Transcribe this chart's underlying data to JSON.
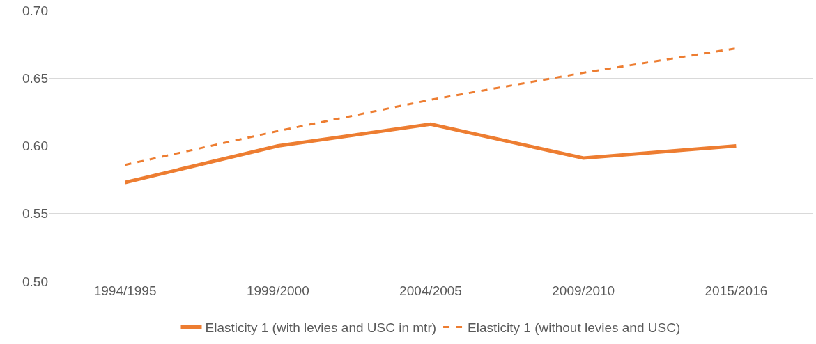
{
  "chart_data": {
    "type": "line",
    "categories": [
      "1994/1995",
      "1999/2000",
      "2004/2005",
      "2009/2010",
      "2015/2016"
    ],
    "series": [
      {
        "name": "Elasticity 1 (with levies and USC in mtr)",
        "color": "#ed7d31",
        "line_style": "solid",
        "values": [
          0.573,
          0.6,
          0.616,
          0.591,
          0.6
        ]
      },
      {
        "name": "Elasticity 1 (without levies and USC)",
        "color": "#ed7d31",
        "line_style": "dashed",
        "values": [
          0.586,
          0.611,
          0.634,
          0.654,
          0.672
        ]
      }
    ],
    "ylim": [
      0.5,
      0.7
    ],
    "yticks": [
      {
        "value": 0.5,
        "label": "0.50"
      },
      {
        "value": 0.55,
        "label": "0.55"
      },
      {
        "value": 0.6,
        "label": "0.60"
      },
      {
        "value": 0.65,
        "label": "0.65"
      },
      {
        "value": 0.7,
        "label": "0.70"
      }
    ],
    "grid": "y",
    "legend": "bottom",
    "marker": "none"
  }
}
